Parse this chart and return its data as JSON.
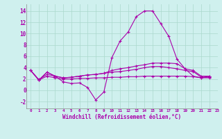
{
  "xlabel": "Windchill (Refroidissement éolien,°C)",
  "background_color": "#cff0ee",
  "grid_color": "#aad8cc",
  "line_color": "#aa00aa",
  "xlim": [
    -0.5,
    23
  ],
  "ylim": [
    -3.2,
    15.2
  ],
  "yticks": [
    -2,
    0,
    2,
    4,
    6,
    8,
    10,
    12,
    14
  ],
  "xticks": [
    0,
    1,
    2,
    3,
    4,
    5,
    6,
    7,
    8,
    9,
    10,
    11,
    12,
    13,
    14,
    15,
    16,
    17,
    18,
    19,
    20,
    21,
    22,
    23
  ],
  "series": [
    [
      3.5,
      1.8,
      3.2,
      2.5,
      1.5,
      1.2,
      1.3,
      0.5,
      -1.7,
      -0.3,
      5.8,
      8.7,
      10.3,
      13.0,
      14.0,
      14.0,
      11.8,
      9.5,
      5.5,
      3.8,
      2.5,
      2.2,
      2.5
    ],
    [
      3.5,
      1.8,
      3.2,
      2.5,
      2.2,
      2.3,
      2.5,
      2.7,
      2.8,
      3.0,
      3.5,
      3.8,
      4.0,
      4.3,
      4.5,
      4.8,
      4.8,
      4.8,
      4.7,
      3.8,
      3.5,
      2.5,
      2.5
    ],
    [
      3.5,
      1.9,
      2.8,
      2.5,
      2.2,
      2.3,
      2.5,
      2.7,
      2.8,
      3.0,
      3.2,
      3.3,
      3.5,
      3.7,
      4.0,
      4.2,
      4.2,
      4.0,
      3.8,
      3.5,
      3.3,
      2.3,
      2.3
    ],
    [
      3.5,
      1.8,
      2.5,
      2.2,
      2.0,
      2.0,
      2.1,
      2.1,
      2.2,
      2.2,
      2.3,
      2.3,
      2.4,
      2.4,
      2.5,
      2.5,
      2.5,
      2.5,
      2.5,
      2.5,
      2.4,
      2.2,
      2.2
    ]
  ],
  "marker": "+",
  "markersize": 3,
  "linewidth": 0.8
}
